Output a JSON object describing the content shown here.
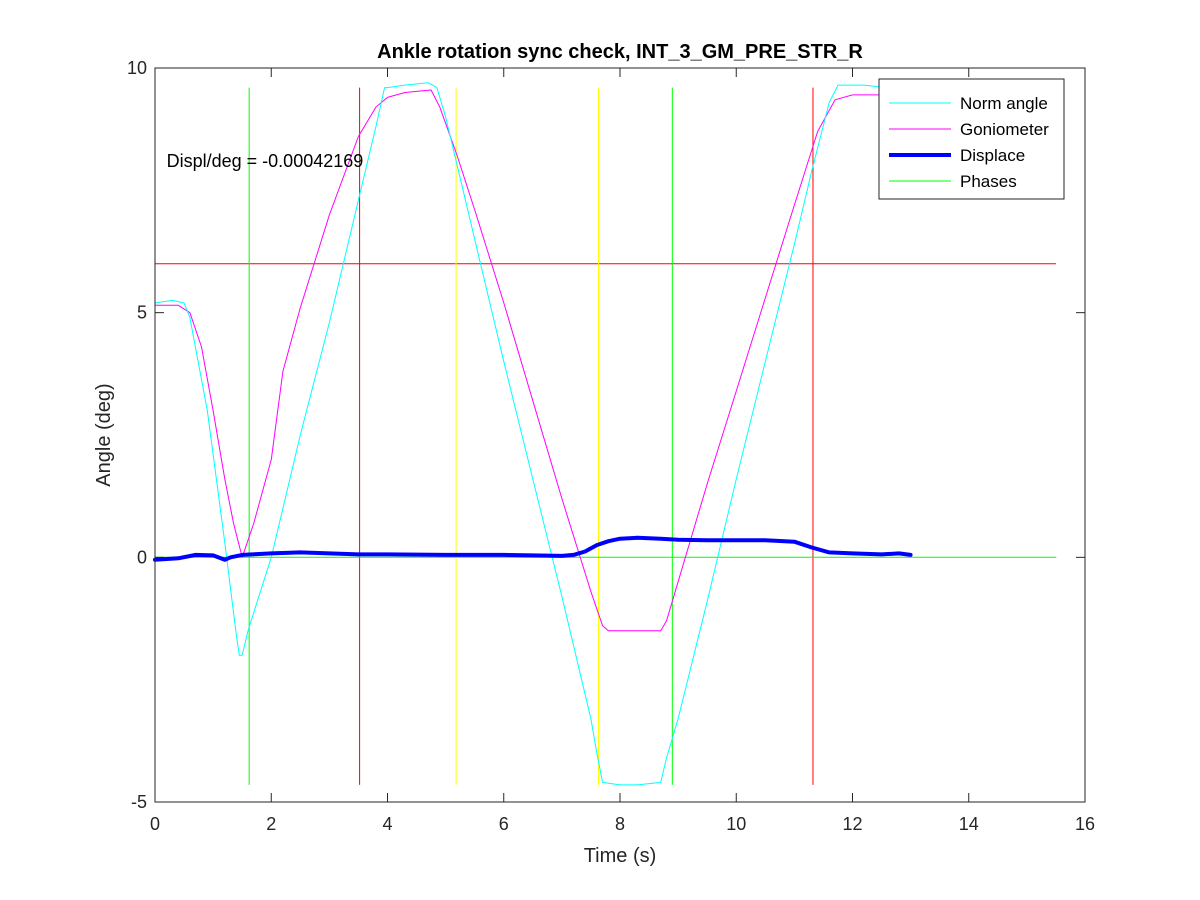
{
  "chart_data": {
    "type": "line",
    "title": "Ankle rotation sync check, INT_3_GM_PRE_STR_R",
    "xlabel": "Time (s)",
    "ylabel": "Angle (deg)",
    "xlim": [
      0,
      16
    ],
    "ylim": [
      -5,
      10
    ],
    "xticks": [
      0,
      2,
      4,
      6,
      8,
      10,
      12,
      14,
      16
    ],
    "yticks": [
      -5,
      0,
      5,
      10
    ],
    "grid": false,
    "legend_placement": "top-right",
    "annotation": {
      "text": "Displ/deg = -0.00042169",
      "x": 0.2,
      "y": 8.1
    },
    "series": [
      {
        "name": "Norm angle",
        "color": "#00ffff",
        "width": 1,
        "x": [
          0,
          0.3,
          0.5,
          0.6,
          0.9,
          1.2,
          1.4,
          1.45,
          1.5,
          1.6,
          2.0,
          2.5,
          3.0,
          3.5,
          3.8,
          3.95,
          4.0,
          4.3,
          4.7,
          4.85,
          5.0,
          5.2,
          5.5,
          6.0,
          6.5,
          7.0,
          7.5,
          7.6,
          7.7,
          8.0,
          8.3,
          8.7,
          8.8,
          9.0,
          9.5,
          10.0,
          10.5,
          11.0,
          11.3,
          11.6,
          11.75,
          11.8,
          12.2,
          12.6
        ],
        "y": [
          5.2,
          5.25,
          5.2,
          4.9,
          3.0,
          0.3,
          -1.6,
          -2.0,
          -2.0,
          -1.5,
          0.0,
          2.5,
          4.8,
          7.3,
          8.8,
          9.6,
          9.6,
          9.65,
          9.7,
          9.6,
          9.0,
          8.0,
          6.5,
          4.0,
          1.6,
          -0.8,
          -3.3,
          -4.0,
          -4.6,
          -4.65,
          -4.65,
          -4.6,
          -4.1,
          -3.3,
          -0.9,
          1.6,
          4.0,
          6.4,
          7.9,
          9.3,
          9.65,
          9.65,
          9.65,
          9.6
        ]
      },
      {
        "name": "Goniometer",
        "color": "#ff00ff",
        "width": 1,
        "x": [
          0,
          0.4,
          0.6,
          0.8,
          1.0,
          1.2,
          1.35,
          1.5,
          1.7,
          2.0,
          2.2,
          2.5,
          3.0,
          3.5,
          3.8,
          4.0,
          4.3,
          4.75,
          4.9,
          5.2,
          5.5,
          6.0,
          6.5,
          7.0,
          7.5,
          7.7,
          7.8,
          8.0,
          8.4,
          8.7,
          8.8,
          9.0,
          9.5,
          10.0,
          10.5,
          11.0,
          11.4,
          11.7,
          12.0,
          12.6
        ],
        "y": [
          5.15,
          5.15,
          5.0,
          4.3,
          3.0,
          1.6,
          0.7,
          0.0,
          0.7,
          2.0,
          3.8,
          5.1,
          7.0,
          8.6,
          9.2,
          9.4,
          9.5,
          9.55,
          9.2,
          8.2,
          7.1,
          5.2,
          3.2,
          1.2,
          -0.7,
          -1.4,
          -1.5,
          -1.5,
          -1.5,
          -1.5,
          -1.3,
          -0.5,
          1.5,
          3.4,
          5.3,
          7.2,
          8.7,
          9.35,
          9.45,
          9.45
        ]
      },
      {
        "name": "Displace",
        "color": "#0000ff",
        "width": 4,
        "x": [
          0,
          0.4,
          0.7,
          1.0,
          1.2,
          1.3,
          1.5,
          2.0,
          2.5,
          3.0,
          3.5,
          4.0,
          5.0,
          6.0,
          6.5,
          7.0,
          7.2,
          7.4,
          7.6,
          7.8,
          8.0,
          8.3,
          8.7,
          9.0,
          9.5,
          10.0,
          10.5,
          11.0,
          11.3,
          11.6,
          12.0,
          12.5,
          12.8,
          13.0
        ],
        "y": [
          -0.05,
          -0.02,
          0.05,
          0.04,
          -0.05,
          0.0,
          0.05,
          0.08,
          0.1,
          0.08,
          0.06,
          0.06,
          0.05,
          0.05,
          0.04,
          0.03,
          0.05,
          0.12,
          0.25,
          0.33,
          0.38,
          0.4,
          0.38,
          0.36,
          0.35,
          0.35,
          0.35,
          0.32,
          0.2,
          0.1,
          0.08,
          0.06,
          0.08,
          0.05
        ]
      },
      {
        "name": "Phases",
        "color": "#00ff00",
        "width": 1,
        "x": [
          0,
          15.5
        ],
        "y": [
          0,
          0
        ]
      }
    ],
    "reference_lines": [
      {
        "orientation": "horizontal",
        "value": 6,
        "from": 0,
        "to": 15.5,
        "color": "#ff0000"
      },
      {
        "orientation": "vertical",
        "value": 1.62,
        "from": -4.65,
        "to": 9.6,
        "color": "#00ff00"
      },
      {
        "orientation": "vertical",
        "value": 3.52,
        "from": -4.65,
        "to": 9.6,
        "color": "#ff0000"
      },
      {
        "orientation": "vertical",
        "value": 5.18,
        "from": -4.65,
        "to": 9.6,
        "color": "#ffff00"
      },
      {
        "orientation": "vertical",
        "value": 7.63,
        "from": -4.65,
        "to": 9.6,
        "color": "#ffff00"
      },
      {
        "orientation": "vertical",
        "value": 8.9,
        "from": -4.65,
        "to": 9.6,
        "color": "#00ff00"
      },
      {
        "orientation": "vertical",
        "value": 11.32,
        "from": -4.65,
        "to": 9.6,
        "color": "#ff0000"
      }
    ]
  }
}
